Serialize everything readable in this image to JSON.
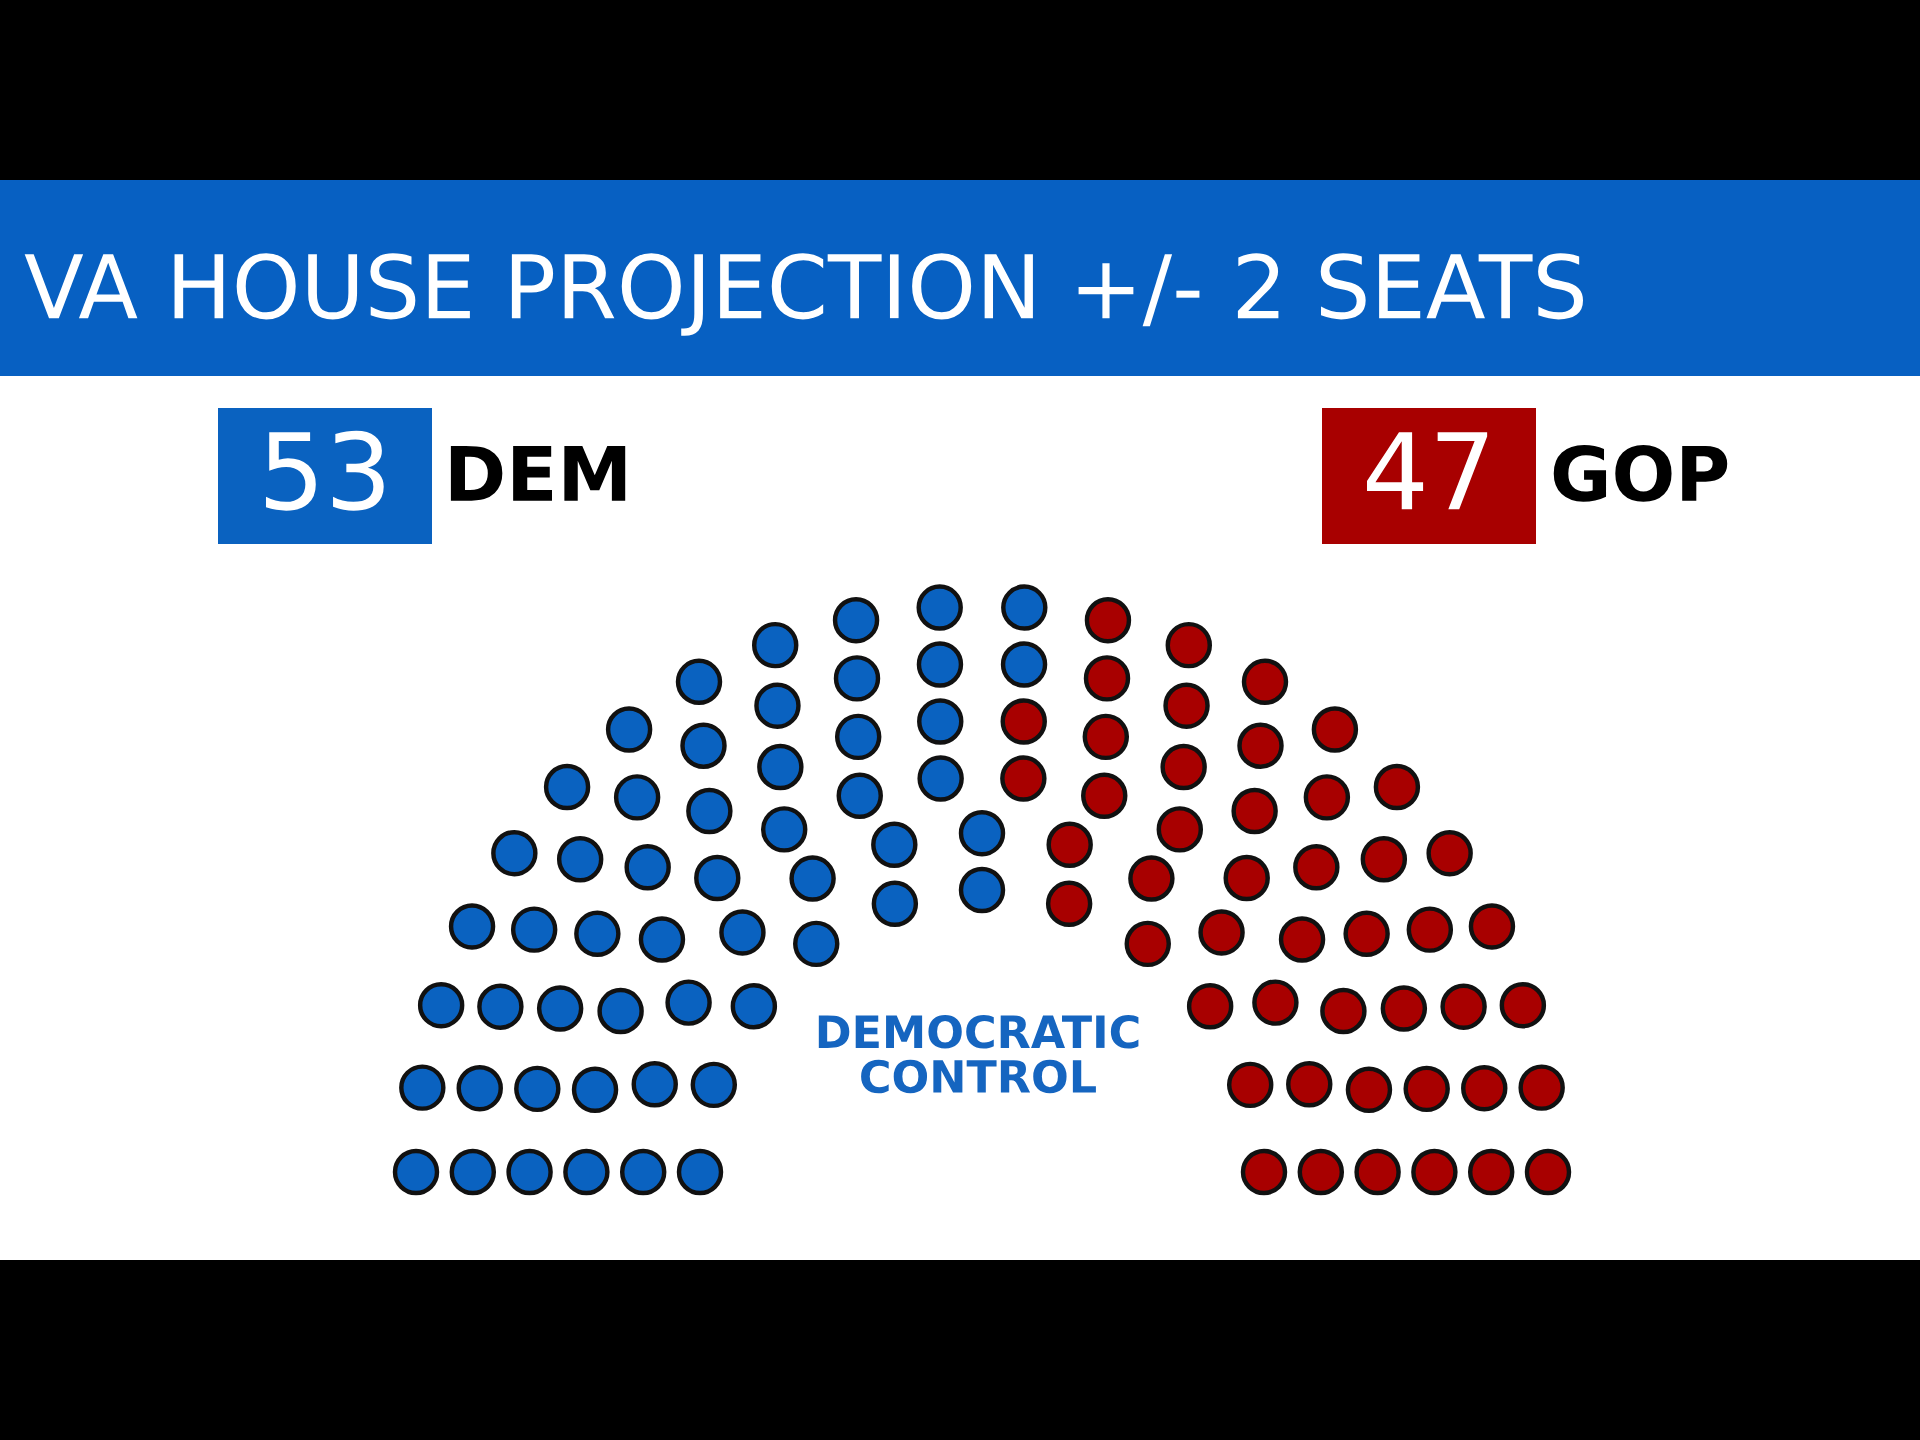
{
  "chart_data": {
    "type": "other",
    "title": "VA HOUSE PROJECTION +/- 2 SEATS",
    "categories": [
      "DEM",
      "GOP"
    ],
    "values": [
      53,
      47
    ],
    "colors": [
      "#0a62c0",
      "#a80000"
    ],
    "data_labels": true,
    "annotations": [
      "DEMOCRATIC\nCONTROL"
    ]
  }
}
